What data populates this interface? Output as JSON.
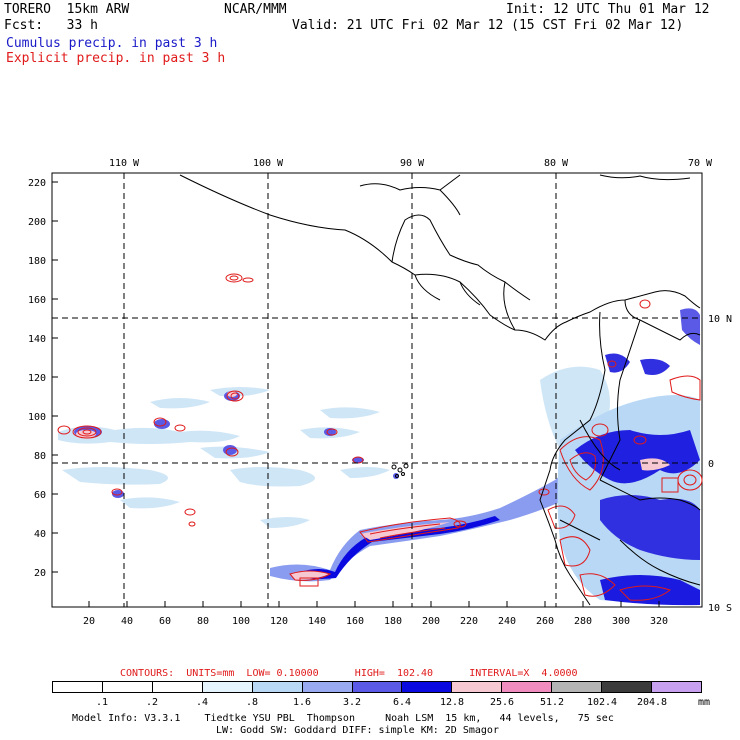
{
  "header": {
    "model": "TORERO  15km ARW",
    "org": "NCAR/MMM",
    "init": "Init: 12 UTC Thu 01 Mar 12",
    "fcst": "Fcst:   33 h",
    "valid": "Valid: 21 UTC Fri 02 Mar 12 (15 CST Fri 02 Mar 12)",
    "field1": "Cumulus precip. in past 3 h",
    "field2": "Explicit precip. in past 3 h"
  },
  "colors": {
    "field1": "#1a1ac8",
    "field2": "#e01a1a",
    "frame": "#000000"
  },
  "map": {
    "lon_labels": [
      "110 W",
      "100 W",
      "90 W",
      "80 W",
      "70 W"
    ],
    "lat_labels": [
      "10 N",
      "0",
      "10 S"
    ],
    "y_ticks": [
      "220",
      "200",
      "180",
      "160",
      "140",
      "120",
      "100",
      "80",
      "60",
      "40",
      "20"
    ],
    "x_ticks": [
      "20",
      "40",
      "60",
      "80",
      "100",
      "120",
      "140",
      "160",
      "180",
      "200",
      "220",
      "240",
      "260",
      "280",
      "300",
      "320"
    ]
  },
  "contours": "CONTOURS:  UNITS=mm  LOW= 0.10000      HIGH=  102.40      INTERVAL=X  4.0000",
  "colorbar": {
    "labels": [
      ".1",
      ".2",
      ".4",
      ".8",
      "1.6",
      "3.2",
      "6.4",
      "12.8",
      "25.6",
      "51.2",
      "102.4",
      "204.8"
    ],
    "unit": "mm",
    "colors": [
      "#ffffff",
      "#ffffff",
      "#ffffff",
      "#e6f5fd",
      "#b8d8f5",
      "#9aaaf0",
      "#5a5ae6",
      "#0a0ae0",
      "#f5c8d2",
      "#f08cbe",
      "#b4b4b4",
      "#3c3c3c",
      "#c8a0f0"
    ]
  },
  "footer": {
    "line1": "Model Info: V3.3.1    Tiedtke YSU PBL  Thompson     Noah LSM  15 km,   44 levels,   75 sec",
    "line2": "LW: Godd SW: Goddard DIFF: simple KM: 2D Smagor"
  }
}
